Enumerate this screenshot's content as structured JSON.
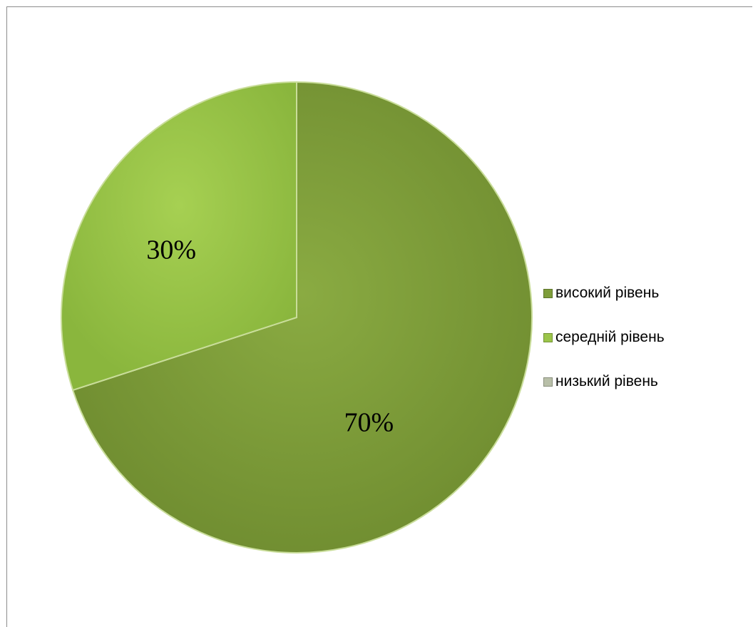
{
  "chart_data": {
    "type": "pie",
    "slices": [
      {
        "name": "високий рівень",
        "value": 70,
        "label": "70%",
        "color": "#7e9d3a"
      },
      {
        "name": "середній рівень",
        "value": 30,
        "label": "30%",
        "color": "#9bc54a"
      },
      {
        "name": "низький рівень",
        "value": 0,
        "label": "",
        "color": "#b8bfa8"
      }
    ],
    "legend_position": "right"
  }
}
